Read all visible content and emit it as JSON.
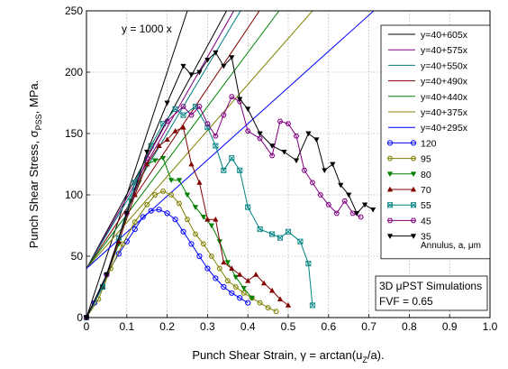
{
  "chart_data": {
    "type": "line",
    "title": "",
    "xlabel": "Punch Shear Strain, γ = arctan(u",
    "xlabel_sub": "Z",
    "xlabel_tail": "/a).",
    "ylabel": "Punch Shear Stress, σ",
    "ylabel_sub": "PSS",
    "ylabel_tail": ", MPa.",
    "xlim": [
      0,
      1.0
    ],
    "ylim": [
      0,
      250
    ],
    "xticks": [
      0,
      0.1,
      0.2,
      0.3,
      0.4,
      0.5,
      0.6,
      0.7,
      0.8,
      0.9,
      1.0
    ],
    "xtick_labels": [
      "0",
      "0.1",
      "0.2",
      "0.3",
      "0.4",
      "0.5",
      "0.6",
      "0.7",
      "0.8",
      "0.9",
      "1.0"
    ],
    "yticks": [
      0,
      50,
      100,
      150,
      200,
      250
    ],
    "ytick_labels": [
      "0",
      "50",
      "100",
      "150",
      "200",
      "250"
    ],
    "grid": true,
    "legend_position": "right",
    "legend_footer": "Annulus, a, μm",
    "annotations": {
      "ref_line_label": "y = 1000 x",
      "sim_box_line1": "3D μPST Simulations",
      "sim_box_line2": "FVF = 0.65"
    },
    "reference_line": {
      "intercept": 0,
      "slope": 1000,
      "color": "#000000"
    },
    "fit_lines": [
      {
        "name": "y=40+605x",
        "intercept": 40,
        "slope": 605,
        "color": "#000000"
      },
      {
        "name": "y=40+575x",
        "intercept": 40,
        "slope": 575,
        "color": "#800080"
      },
      {
        "name": "y=40+550x",
        "intercept": 40,
        "slope": 550,
        "color": "#008080"
      },
      {
        "name": "y=40+490x",
        "intercept": 40,
        "slope": 490,
        "color": "#800000"
      },
      {
        "name": "y=40+440x",
        "intercept": 40,
        "slope": 440,
        "color": "#008000"
      },
      {
        "name": "y=40+375x",
        "intercept": 40,
        "slope": 375,
        "color": "#808000"
      },
      {
        "name": "y=40+295x",
        "intercept": 40,
        "slope": 295,
        "color": "#0000ff"
      }
    ],
    "series": [
      {
        "name": "120",
        "color": "#0000ff",
        "marker": "circle",
        "x": [
          0,
          0.02,
          0.05,
          0.08,
          0.1,
          0.12,
          0.14,
          0.16,
          0.18,
          0.2,
          0.22,
          0.24,
          0.26,
          0.28,
          0.3,
          0.32,
          0.34,
          0.36,
          0.38,
          0.4
        ],
        "y": [
          0,
          12,
          35,
          52,
          62,
          72,
          82,
          87,
          88,
          85,
          80,
          70,
          60,
          50,
          40,
          32,
          25,
          20,
          16,
          12
        ]
      },
      {
        "name": "95",
        "color": "#808000",
        "marker": "hexagon",
        "x": [
          0,
          0.03,
          0.06,
          0.09,
          0.12,
          0.15,
          0.17,
          0.19,
          0.21,
          0.23,
          0.25,
          0.27,
          0.29,
          0.31,
          0.33,
          0.35,
          0.37,
          0.39,
          0.41,
          0.43,
          0.45,
          0.47
        ],
        "y": [
          0,
          15,
          40,
          60,
          78,
          92,
          100,
          103,
          100,
          93,
          80,
          68,
          60,
          50,
          40,
          30,
          25,
          20,
          16,
          12,
          8,
          5
        ]
      },
      {
        "name": "80",
        "color": "#008000",
        "marker": "triangle-down",
        "x": [
          0,
          0.04,
          0.08,
          0.11,
          0.13,
          0.15,
          0.17,
          0.19,
          0.21,
          0.23,
          0.25,
          0.27,
          0.29,
          0.31,
          0.33,
          0.35,
          0.37,
          0.39,
          0.41
        ],
        "y": [
          0,
          25,
          60,
          95,
          110,
          125,
          128,
          130,
          112,
          112,
          100,
          90,
          82,
          75,
          62,
          45,
          33,
          24,
          16
        ]
      },
      {
        "name": "70",
        "color": "#800000",
        "marker": "triangle-up",
        "x": [
          0,
          0.04,
          0.08,
          0.12,
          0.15,
          0.18,
          0.2,
          0.22,
          0.24,
          0.26,
          0.28,
          0.3,
          0.32,
          0.34,
          0.36,
          0.38,
          0.4,
          0.42,
          0.44,
          0.46,
          0.48,
          0.5
        ],
        "y": [
          0,
          25,
          62,
          100,
          125,
          140,
          145,
          152,
          155,
          125,
          110,
          80,
          80,
          45,
          40,
          35,
          30,
          35,
          28,
          22,
          15,
          10
        ]
      },
      {
        "name": "55",
        "color": "#008080",
        "marker": "x-square",
        "x": [
          0,
          0.04,
          0.08,
          0.12,
          0.16,
          0.19,
          0.22,
          0.24,
          0.27,
          0.3,
          0.32,
          0.34,
          0.36,
          0.38,
          0.4,
          0.43,
          0.46,
          0.48,
          0.5,
          0.53,
          0.55,
          0.56
        ],
        "y": [
          0,
          25,
          65,
          110,
          140,
          158,
          170,
          165,
          172,
          155,
          140,
          120,
          130,
          120,
          90,
          72,
          68,
          65,
          70,
          62,
          44,
          10
        ]
      },
      {
        "name": "45",
        "color": "#800080",
        "marker": "hexagon",
        "x": [
          0,
          0.05,
          0.1,
          0.15,
          0.2,
          0.24,
          0.26,
          0.28,
          0.3,
          0.32,
          0.34,
          0.36,
          0.38,
          0.4,
          0.43,
          0.46,
          0.48,
          0.5,
          0.52,
          0.54,
          0.56,
          0.58,
          0.6,
          0.62,
          0.64,
          0.66,
          0.68
        ],
        "y": [
          0,
          35,
          85,
          130,
          160,
          172,
          165,
          172,
          158,
          148,
          165,
          180,
          176,
          152,
          146,
          132,
          160,
          158,
          148,
          120,
          110,
          100,
          92,
          85,
          95,
          85,
          82
        ]
      },
      {
        "name": "35",
        "color": "#000000",
        "marker": "triangle-down",
        "x": [
          0,
          0.05,
          0.1,
          0.15,
          0.2,
          0.24,
          0.26,
          0.28,
          0.3,
          0.32,
          0.34,
          0.36,
          0.38,
          0.4,
          0.43,
          0.46,
          0.49,
          0.52,
          0.55,
          0.57,
          0.59,
          0.61,
          0.63,
          0.65,
          0.67,
          0.69,
          0.71
        ],
        "y": [
          0,
          35,
          85,
          135,
          175,
          205,
          198,
          200,
          210,
          216,
          205,
          212,
          178,
          170,
          150,
          140,
          135,
          128,
          150,
          145,
          120,
          125,
          108,
          100,
          85,
          92,
          88
        ]
      }
    ]
  }
}
